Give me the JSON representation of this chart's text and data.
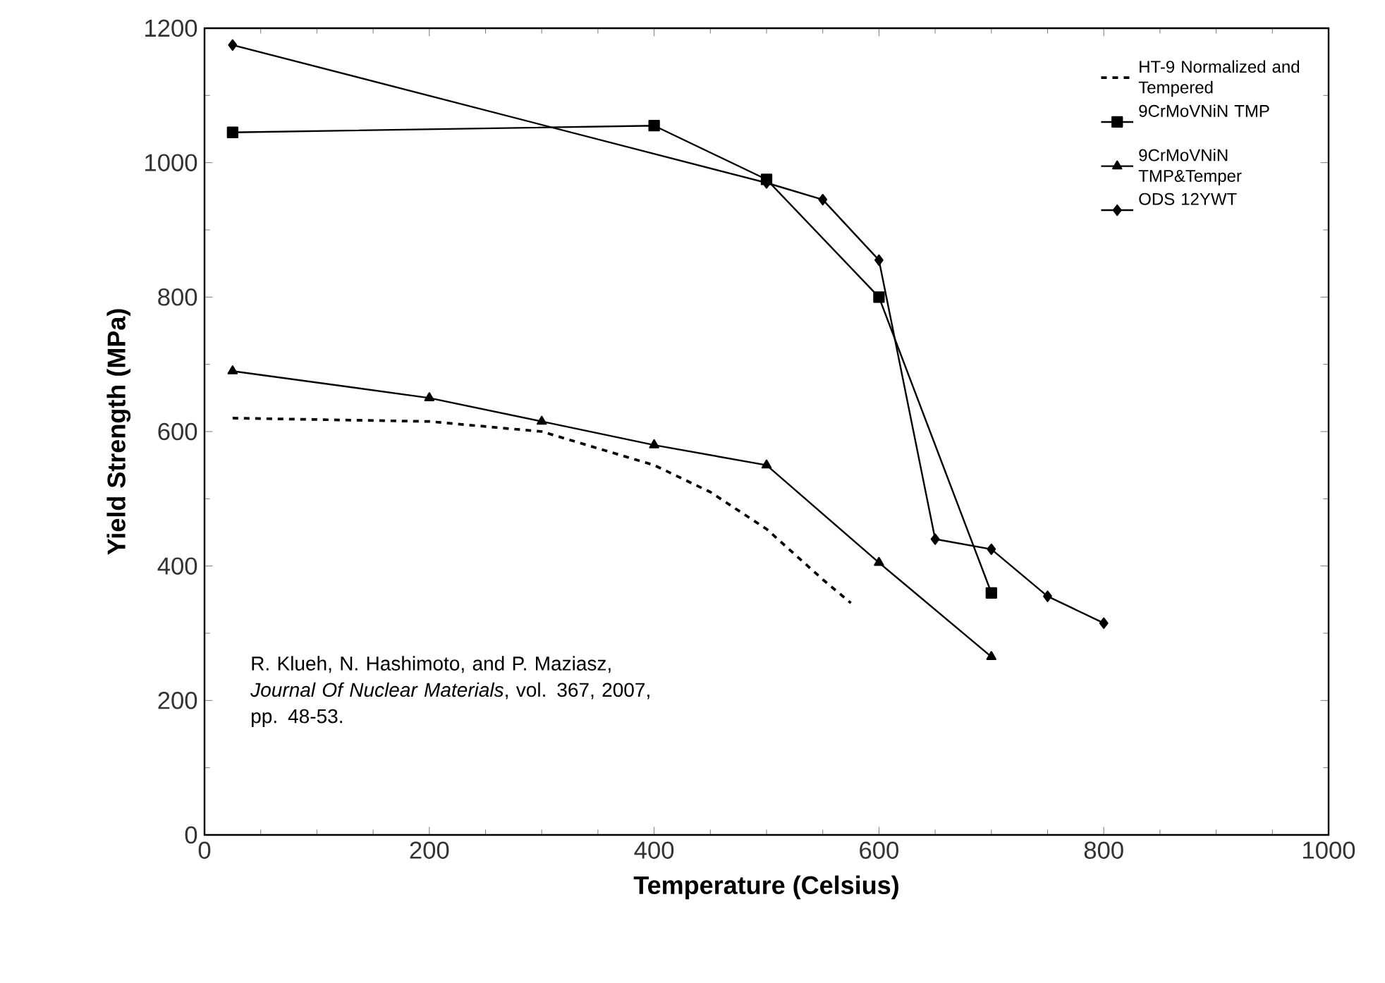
{
  "chart_data": {
    "type": "line",
    "xlabel": "Temperature (Celsius)",
    "ylabel": "Yield Strength (MPa)",
    "xlim": [
      0,
      1000
    ],
    "ylim": [
      0,
      1200
    ],
    "xticks": [
      0,
      200,
      400,
      600,
      800,
      1000
    ],
    "yticks": [
      0,
      200,
      400,
      600,
      800,
      1000,
      1200
    ],
    "legend": "top right",
    "series": [
      {
        "name": "HT-9 Normalized and Tempered",
        "color": "#000000",
        "line_style": "dashed",
        "marker": "none",
        "x": [
          25,
          200,
          300,
          400,
          450,
          500,
          550,
          575
        ],
        "values": [
          620,
          615,
          600,
          550,
          510,
          455,
          380,
          345
        ]
      },
      {
        "name": "9CrMoVNiN TMP",
        "color": "#000000",
        "line_style": "solid",
        "marker": "square",
        "x": [
          25,
          400,
          500,
          600,
          700
        ],
        "values": [
          1045,
          1055,
          975,
          800,
          360
        ]
      },
      {
        "name": "9CrMoVNiN TMP&Temper",
        "color": "#000000",
        "line_style": "solid",
        "marker": "triangle",
        "x": [
          25,
          200,
          300,
          400,
          500,
          600,
          700
        ],
        "values": [
          690,
          650,
          615,
          580,
          550,
          405,
          265
        ]
      },
      {
        "name": "ODS 12YWT",
        "color": "#000000",
        "line_style": "solid",
        "marker": "diamond",
        "x": [
          25,
          500,
          550,
          600,
          650,
          700,
          750,
          800
        ],
        "values": [
          1175,
          970,
          945,
          855,
          440,
          425,
          355,
          315
        ]
      }
    ],
    "annotations": [
      "R. Klueh, N. Hashimoto, and P. Maziasz, *Journal Of Nuclear Materials*, vol. 367, 2007, pp. 48-53."
    ]
  }
}
